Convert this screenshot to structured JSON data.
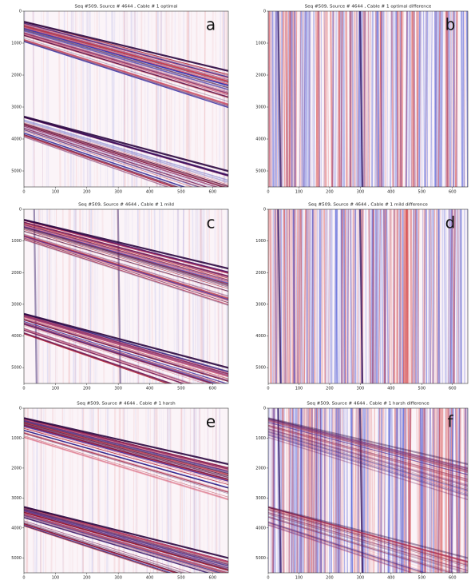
{
  "chart_data": [
    {
      "type": "image",
      "title": "Seq #509, Source # 4644 , Cable # 1 optimal",
      "annotation": "a",
      "xlim": [
        0,
        650
      ],
      "ylim": [
        5500,
        0
      ],
      "xticks": [
        0,
        100,
        200,
        300,
        400,
        500,
        600
      ],
      "yticks": [
        0,
        1000,
        2000,
        3000,
        4000,
        5000
      ]
    },
    {
      "type": "image",
      "title": "Seq #509, Source # 4644 , Cable # 1 optimal difference",
      "annotation": "b",
      "xlim": [
        0,
        650
      ],
      "ylim": [
        5500,
        0
      ],
      "xticks": [
        0,
        100,
        200,
        300,
        400,
        500,
        600
      ],
      "yticks": [
        0,
        1000,
        2000,
        3000,
        4000,
        5000
      ]
    },
    {
      "type": "image",
      "title": "Seq #509, Source # 4644 , Cable # 1 mild",
      "annotation": "c",
      "xlim": [
        0,
        650
      ],
      "ylim": [
        5500,
        0
      ],
      "xticks": [
        0,
        100,
        200,
        300,
        400,
        500,
        600
      ],
      "yticks": [
        0,
        1000,
        2000,
        3000,
        4000,
        5000
      ]
    },
    {
      "type": "image",
      "title": "Seq #509, Source # 4644 , Cable # 1 mild difference",
      "annotation": "d",
      "xlim": [
        0,
        650
      ],
      "ylim": [
        5500,
        0
      ],
      "xticks": [
        0,
        100,
        200,
        300,
        400,
        500,
        600
      ],
      "yticks": [
        0,
        1000,
        2000,
        3000,
        4000,
        5000
      ]
    },
    {
      "type": "image",
      "title": "Seq #509, Source # 4644 , Cable # 1 harsh",
      "annotation": "e",
      "xlim": [
        0,
        650
      ],
      "ylim": [
        5500,
        0
      ],
      "xticks": [
        0,
        100,
        200,
        300,
        400,
        500,
        600
      ],
      "yticks": [
        0,
        1000,
        2000,
        3000,
        4000,
        5000
      ]
    },
    {
      "type": "image",
      "title": "Seq #509, Source # 4644 , Cable # 1 harsh difference",
      "annotation": "f",
      "xlim": [
        0,
        650
      ],
      "ylim": [
        5500,
        0
      ],
      "xticks": [
        0,
        100,
        200,
        300,
        400,
        500,
        600
      ],
      "yticks": [
        0,
        1000,
        2000,
        3000,
        4000,
        5000
      ]
    }
  ]
}
